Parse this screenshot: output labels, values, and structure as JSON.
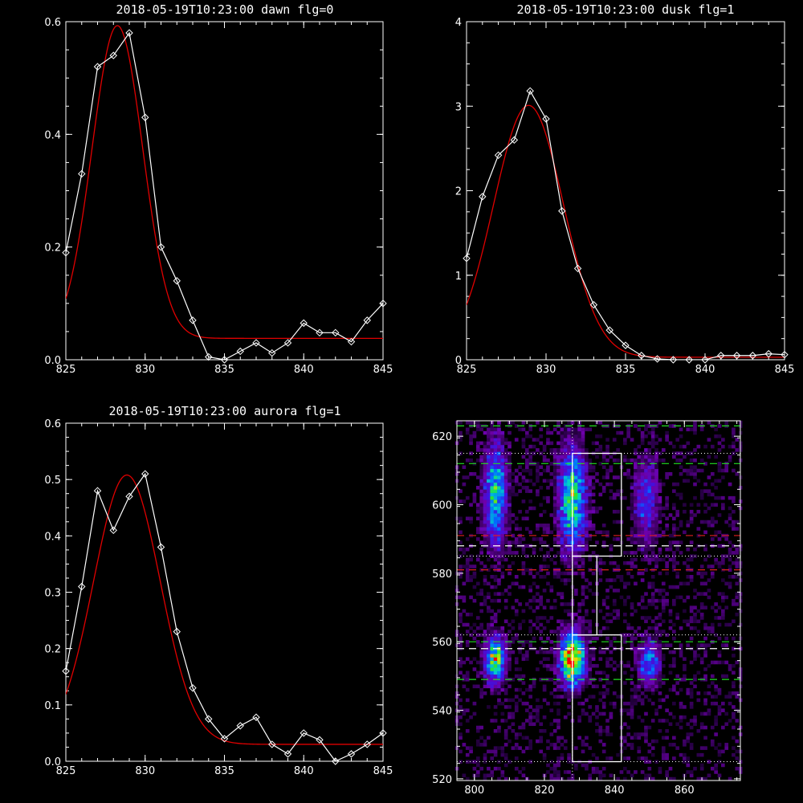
{
  "chart_data": [
    {
      "id": "p1",
      "type": "line",
      "title": "2018-05-19T10:23:00 dawn flg=0",
      "xlim": [
        825,
        845
      ],
      "ylim": [
        0,
        0.6
      ],
      "xticks": [
        825,
        830,
        835,
        840,
        845
      ],
      "yticks": [
        0.0,
        0.2,
        0.4,
        0.6
      ],
      "ytick_labels": [
        "0.0",
        "0.2",
        "0.4",
        "0.6"
      ],
      "series": [
        {
          "role": "observed",
          "color": "#ffffff",
          "marker": "diamond",
          "x": [
            825,
            826,
            827,
            828,
            829,
            830,
            831,
            832,
            833,
            834,
            835,
            836,
            837,
            838,
            839,
            840,
            841,
            842,
            843,
            844,
            845
          ],
          "y": [
            0.19,
            0.33,
            0.52,
            0.54,
            0.58,
            0.43,
            0.2,
            0.14,
            0.07,
            0.005,
            0.0,
            0.015,
            0.03,
            0.012,
            0.03,
            0.065,
            0.048,
            0.048,
            0.032,
            0.07,
            0.1
          ]
        },
        {
          "role": "fit",
          "color": "#e00000",
          "model": {
            "amp": 0.555,
            "center": 828.25,
            "sigma": 1.6,
            "base": 0.038
          }
        }
      ]
    },
    {
      "id": "p2",
      "type": "line",
      "title": "2018-05-19T10:23:00 dusk flg=1",
      "xlim": [
        825,
        845
      ],
      "ylim": [
        0,
        4
      ],
      "xticks": [
        825,
        830,
        835,
        840,
        845
      ],
      "yticks": [
        0,
        1,
        2,
        3,
        4
      ],
      "ytick_labels": [
        "0",
        "1",
        "2",
        "3",
        "4"
      ],
      "series": [
        {
          "role": "observed",
          "color": "#ffffff",
          "marker": "diamond",
          "x": [
            825,
            826,
            827,
            828,
            829,
            830,
            831,
            832,
            833,
            834,
            835,
            836,
            837,
            838,
            839,
            840,
            841,
            842,
            843,
            844,
            845
          ],
          "y": [
            1.2,
            1.93,
            2.42,
            2.6,
            3.18,
            2.85,
            1.76,
            1.08,
            0.65,
            0.35,
            0.17,
            0.05,
            0.01,
            0.0,
            0.0,
            0.0,
            0.05,
            0.05,
            0.05,
            0.07,
            0.06
          ]
        },
        {
          "role": "fit",
          "color": "#e00000",
          "model": {
            "amp": 2.98,
            "center": 828.9,
            "sigma": 2.2,
            "base": 0.03
          }
        }
      ]
    },
    {
      "id": "p3",
      "type": "line",
      "title": "2018-05-19T10:23:00 aurora flg=1",
      "xlim": [
        825,
        845
      ],
      "ylim": [
        0,
        0.6
      ],
      "xticks": [
        825,
        830,
        835,
        840,
        845
      ],
      "yticks": [
        0.0,
        0.1,
        0.2,
        0.3,
        0.4,
        0.5,
        0.6
      ],
      "ytick_labels": [
        "0.0",
        "0.1",
        "0.2",
        "0.3",
        "0.4",
        "0.5",
        "0.6"
      ],
      "series": [
        {
          "role": "observed",
          "color": "#ffffff",
          "marker": "diamond",
          "x": [
            825,
            826,
            827,
            828,
            829,
            830,
            831,
            832,
            833,
            834,
            835,
            836,
            837,
            838,
            839,
            840,
            841,
            842,
            843,
            844,
            845
          ],
          "y": [
            0.16,
            0.31,
            0.48,
            0.41,
            0.47,
            0.51,
            0.38,
            0.23,
            0.13,
            0.075,
            0.04,
            0.063,
            0.078,
            0.03,
            0.013,
            0.05,
            0.038,
            0.0,
            0.013,
            0.03,
            0.05
          ]
        },
        {
          "role": "fit",
          "color": "#e00000",
          "model": {
            "amp": 0.478,
            "center": 828.85,
            "sigma": 2.1,
            "base": 0.03
          }
        }
      ]
    },
    {
      "id": "p4",
      "type": "heatmap",
      "title": "",
      "xlim": [
        795,
        876
      ],
      "ylim": [
        519.5,
        624.5
      ],
      "xticks": [
        800,
        820,
        840,
        860
      ],
      "yticks": [
        520,
        540,
        560,
        580,
        600,
        620
      ],
      "colormap": "rainbow",
      "blobs": [
        {
          "x": 806,
          "y": 603,
          "sx": 2.2,
          "sy": 10,
          "amp": 0.55
        },
        {
          "x": 828,
          "y": 602,
          "sx": 2.6,
          "sy": 10,
          "amp": 0.65
        },
        {
          "x": 849,
          "y": 601,
          "sx": 2.4,
          "sy": 9,
          "amp": 0.3
        },
        {
          "x": 806,
          "y": 555,
          "sx": 2.0,
          "sy": 4.5,
          "amp": 0.7
        },
        {
          "x": 828,
          "y": 555,
          "sx": 2.3,
          "sy": 5,
          "amp": 1.0
        },
        {
          "x": 850,
          "y": 554,
          "sx": 2.0,
          "sy": 4.5,
          "amp": 0.45
        }
      ],
      "overlays": {
        "vertical_dotted_x": 828,
        "dotted_white_y": [
          615,
          585,
          562,
          525
        ],
        "dashed_green_y": [
          623,
          612,
          560,
          549
        ],
        "dashed_red_y": [
          591,
          581
        ],
        "dashed_white_y": [
          588,
          558
        ],
        "boxes": [
          {
            "x0": 828,
            "x1": 842,
            "y0": 585,
            "y1": 615
          },
          {
            "x0": 828,
            "x1": 842,
            "y0": 525,
            "y1": 562
          },
          {
            "x0": 835,
            "x1": 835
          }
        ]
      }
    }
  ]
}
